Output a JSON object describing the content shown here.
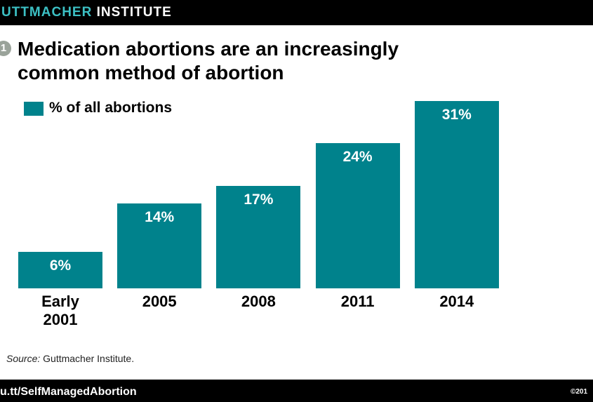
{
  "header": {
    "brand_highlight": "UTTMACHER",
    "brand_rest": "INSTITUTE"
  },
  "figure_number": "1",
  "chart_data": {
    "type": "bar",
    "title_lines": [
      "Medication abortions are an increasingly",
      "common method of abortion"
    ],
    "categories": [
      "Early 2001",
      "2005",
      "2008",
      "2011",
      "2014"
    ],
    "series": [
      {
        "name": "% of all abortions",
        "color": "#00828c",
        "values": [
          6,
          14,
          17,
          24,
          31
        ],
        "value_labels": [
          "6%",
          "14%",
          "17%",
          "24%",
          "31%"
        ]
      }
    ]
  },
  "source": {
    "label": "Source:",
    "text": "Guttmacher Institute."
  },
  "footer": {
    "link": "u.tt/SelfManagedAbortion",
    "copyright": "©201"
  }
}
